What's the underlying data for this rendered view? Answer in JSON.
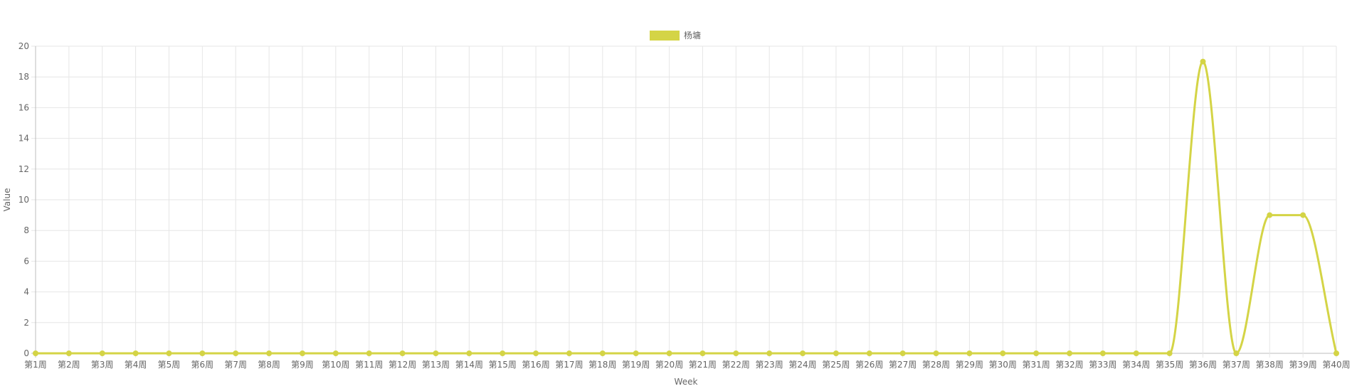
{
  "chart_data": {
    "type": "line",
    "xlabel": "Week",
    "ylabel": "Value",
    "ylim": [
      0,
      20
    ],
    "y_ticks": [
      0,
      2,
      4,
      6,
      8,
      10,
      12,
      14,
      16,
      18,
      20
    ],
    "grid": true,
    "legend_position": "top-center",
    "categories": [
      "第1周",
      "第2周",
      "第3周",
      "第4周",
      "第5周",
      "第6周",
      "第7周",
      "第8周",
      "第9周",
      "第10周",
      "第11周",
      "第12周",
      "第13周",
      "第14周",
      "第15周",
      "第16周",
      "第17周",
      "第18周",
      "第19周",
      "第20周",
      "第21周",
      "第22周",
      "第23周",
      "第24周",
      "第25周",
      "第26周",
      "第27周",
      "第28周",
      "第29周",
      "第30周",
      "第31周",
      "第32周",
      "第33周",
      "第34周",
      "第35周",
      "第36周",
      "第37周",
      "第38周",
      "第39周",
      "第40周"
    ],
    "series": [
      {
        "name": "杨墉",
        "color": "#d4d446",
        "values": [
          0,
          0,
          0,
          0,
          0,
          0,
          0,
          0,
          0,
          0,
          0,
          0,
          0,
          0,
          0,
          0,
          0,
          0,
          0,
          0,
          0,
          0,
          0,
          0,
          0,
          0,
          0,
          0,
          0,
          0,
          0,
          0,
          0,
          0,
          0,
          19,
          0,
          9,
          9,
          0
        ]
      }
    ]
  }
}
